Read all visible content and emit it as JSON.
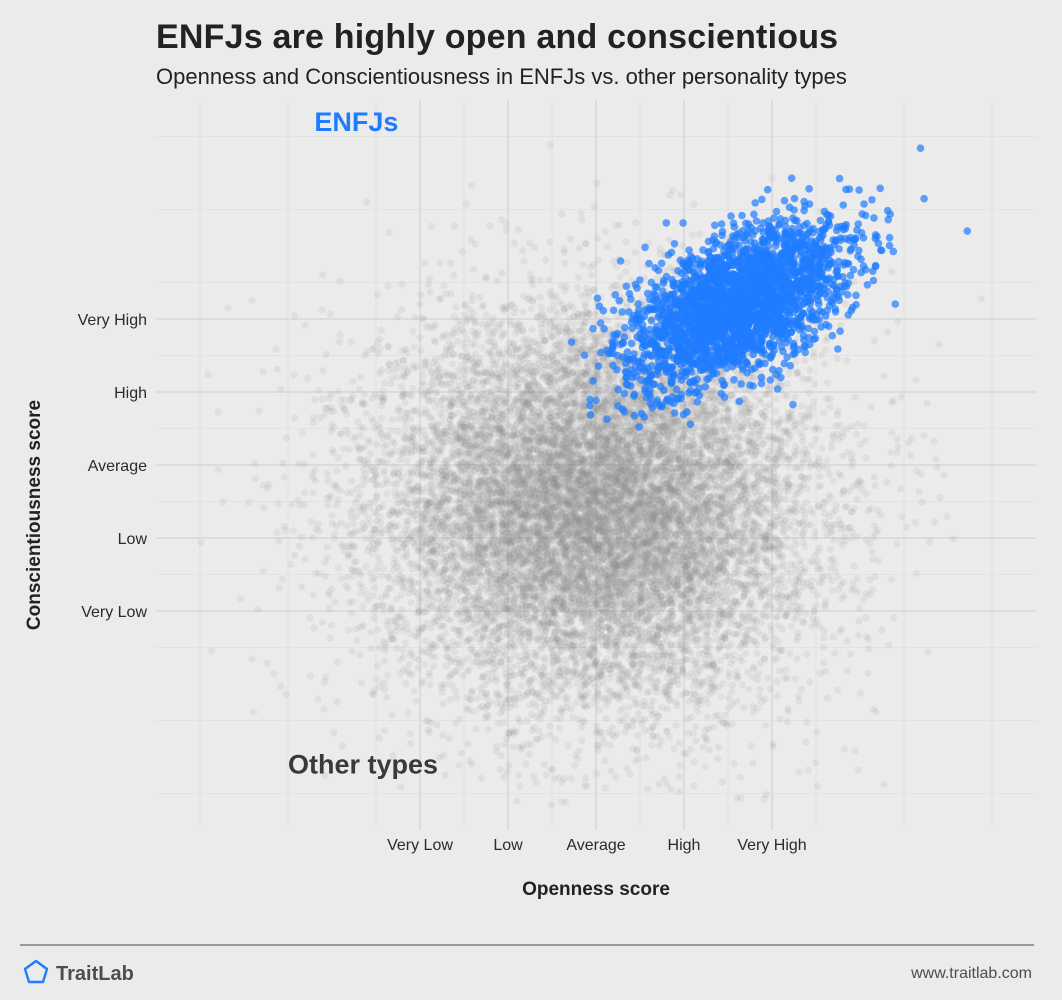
{
  "title": "ENFJs are highly open and conscientious",
  "subtitle": "Openness and Conscientiousness in ENFJs vs. other personality types",
  "colors": {
    "background": "#ebebeb",
    "grid": "#d4d4d4",
    "other_points": "#8c8c8c",
    "enfj_points": "#1f7cff",
    "brand_icon": "#1f7cff"
  },
  "footer": {
    "brand": "TraitLab",
    "brand_icon": "pentagon-logo-icon",
    "url": "www.traitlab.com"
  },
  "chart_data": {
    "type": "scatter",
    "title": "ENFJs are highly open and conscientious",
    "subtitle": "Openness and Conscientiousness in ENFJs vs. other personality types",
    "xlabel": "Openness score",
    "ylabel": "Conscientiousness score",
    "x_ticks": [
      "Very Low",
      "Low",
      "Average",
      "High",
      "Very High"
    ],
    "y_ticks": [
      "Very Low",
      "Low",
      "Average",
      "High",
      "Very High"
    ],
    "xlim": [
      -2.5,
      2.5
    ],
    "ylim": [
      -3.0,
      2.0
    ],
    "grid": true,
    "legend": "none",
    "annotations": [
      {
        "text": "ENFJs",
        "x": -1.6,
        "y": 1.8,
        "series": "ENFJs"
      },
      {
        "text": "Other types",
        "x": -1.75,
        "y": -2.6,
        "series": "Other types"
      }
    ],
    "series": [
      {
        "name": "Other types",
        "color": "#8c8c8c",
        "opacity": 0.12,
        "distribution": {
          "center": [
            0.0,
            -0.8
          ],
          "spread": [
            1.1,
            1.2
          ],
          "n_shown": 14000
        }
      },
      {
        "name": "ENFJs",
        "color": "#1f7cff",
        "opacity": 0.7,
        "distribution": {
          "center": [
            0.8,
            0.6
          ],
          "spread": [
            0.5,
            0.45
          ],
          "correlation": 0.55,
          "n_shown": 2600
        }
      }
    ]
  }
}
